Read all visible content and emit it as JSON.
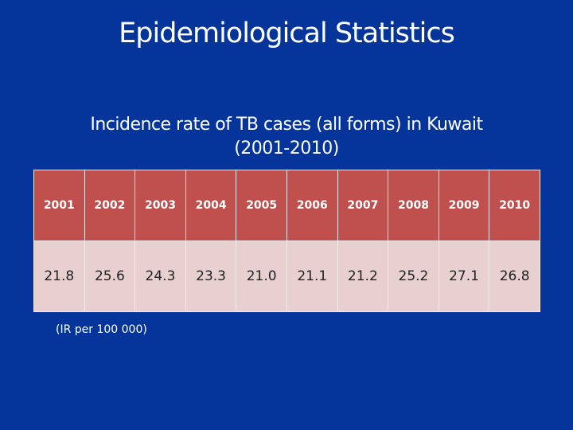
{
  "slide": {
    "title": "Epidemiological Statistics",
    "subtitle_line1": "Incidence rate of TB cases (all forms) in Kuwait",
    "subtitle_line2": "(2001-2010)",
    "note": "(IR per 100 000)"
  },
  "table": {
    "headers": [
      "2001",
      "2002",
      "2003",
      "2004",
      "2005",
      "2006",
      "2007",
      "2008",
      "2009",
      "2010"
    ],
    "values": [
      "21.8",
      "25.6",
      "24.3",
      "23.3",
      "21.0",
      "21.1",
      "21.2",
      "25.2",
      "27.1",
      "26.8"
    ]
  },
  "colors": {
    "background": "#05359a",
    "header": "#c0504d",
    "body": "#e8d0d0"
  }
}
